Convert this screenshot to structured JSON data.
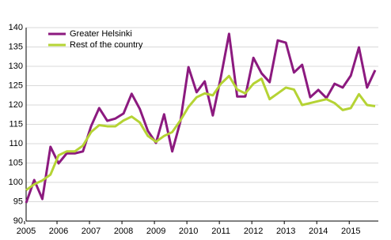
{
  "chart_data": {
    "type": "line",
    "categories": [
      "2005",
      null,
      null,
      null,
      "2006",
      null,
      null,
      null,
      "2007",
      null,
      null,
      null,
      "2008",
      null,
      null,
      null,
      "2009",
      null,
      null,
      null,
      "2010",
      null,
      null,
      null,
      "2011",
      null,
      null,
      null,
      "2012",
      null,
      null,
      null,
      "2013",
      null,
      null,
      null,
      "2014",
      null,
      null,
      null,
      "2015",
      null,
      null,
      null
    ],
    "series": [
      {
        "name": "Greater Helsinki",
        "color": "#8c1a7f",
        "values": [
          94.7,
          100.6,
          95.7,
          109.2,
          104.9,
          107.5,
          107.5,
          108,
          114.5,
          119.2,
          115.9,
          116.5,
          117.8,
          122.9,
          119,
          113.3,
          110.2,
          117.6,
          108,
          115.7,
          129.8,
          123.3,
          126.1,
          117.3,
          127.3,
          138.4,
          122.2,
          122.2,
          132.2,
          128.2,
          125.9,
          136.7,
          136.1,
          128.4,
          130.4,
          122,
          123.9,
          121.8,
          125.5,
          124.5,
          127.6,
          134.9,
          124.5,
          129
        ]
      },
      {
        "name": "Rest of the country",
        "color": "#b5d334",
        "values": [
          98,
          99.5,
          100.5,
          102,
          107,
          108,
          108,
          109.5,
          113,
          114.8,
          114.5,
          114.5,
          116,
          117,
          115.5,
          112,
          110.5,
          112,
          113,
          116,
          119.5,
          122,
          123,
          122.5,
          125.5,
          127.5,
          124,
          123,
          125.5,
          126.8,
          121.5,
          123,
          124.5,
          124,
          120,
          120.5,
          121,
          121.5,
          120.5,
          118.7,
          119.2,
          122.8,
          120,
          119.7
        ]
      }
    ],
    "ylim": [
      90,
      140
    ],
    "yticks": [
      90,
      95,
      100,
      105,
      110,
      115,
      120,
      125,
      130,
      135,
      140
    ],
    "grid": true,
    "legend": "upper left"
  }
}
